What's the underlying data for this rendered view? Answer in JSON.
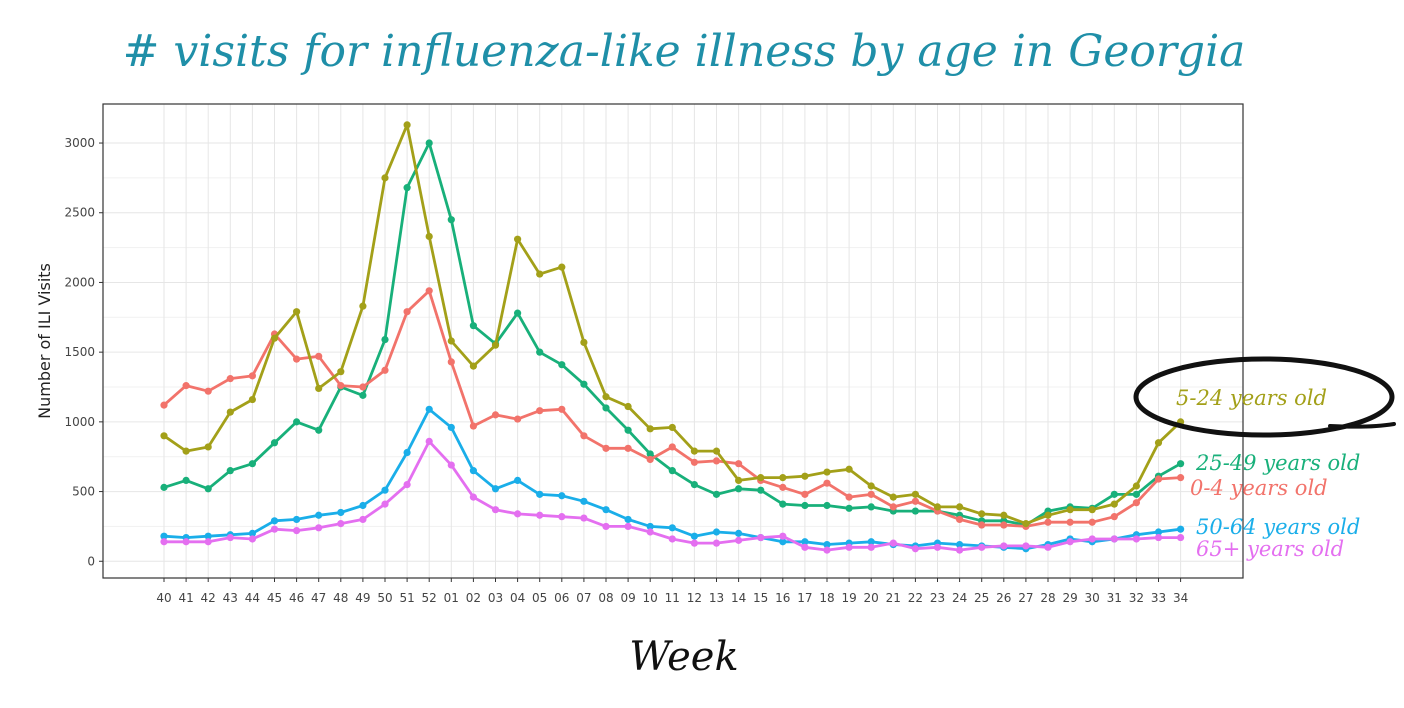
{
  "title": "# visits for influenza-like illness by age in Georgia",
  "chart_data": {
    "type": "line",
    "title": "# visits for influenza-like illness by age in Georgia",
    "xlabel": "Week",
    "ylabel": "Number of ILI Visits",
    "ylim": [
      -120,
      3280
    ],
    "yticks": [
      0,
      500,
      1000,
      1500,
      2000,
      2500,
      3000
    ],
    "grid": true,
    "legend_placement": "right",
    "categories": [
      "40",
      "41",
      "42",
      "43",
      "44",
      "45",
      "46",
      "47",
      "48",
      "49",
      "50",
      "51",
      "52",
      "01",
      "02",
      "03",
      "04",
      "05",
      "06",
      "07",
      "08",
      "09",
      "10",
      "11",
      "12",
      "13",
      "14",
      "15",
      "16",
      "17",
      "18",
      "19",
      "20",
      "21",
      "22",
      "23",
      "24",
      "25",
      "26",
      "27",
      "28",
      "29",
      "30",
      "31",
      "32",
      "33",
      "34"
    ],
    "series": [
      {
        "name": "5-24 years old",
        "color": "#a3a019",
        "highlighted": true,
        "values": [
          900,
          790,
          820,
          1070,
          1160,
          1600,
          1790,
          1240,
          1360,
          1830,
          2750,
          3130,
          2330,
          1580,
          1400,
          1550,
          2310,
          2060,
          2110,
          1570,
          1180,
          1110,
          950,
          960,
          790,
          790,
          580,
          600,
          600,
          610,
          640,
          660,
          540,
          460,
          480,
          390,
          390,
          340,
          330,
          270,
          330,
          370,
          370,
          410,
          540,
          850,
          1000
        ]
      },
      {
        "name": "25-49 years old",
        "color": "#18b07a",
        "values": [
          530,
          580,
          520,
          650,
          700,
          850,
          1000,
          940,
          1250,
          1190,
          1590,
          2680,
          3000,
          2450,
          1690,
          1560,
          1780,
          1500,
          1410,
          1270,
          1100,
          940,
          770,
          650,
          550,
          480,
          520,
          510,
          410,
          400,
          400,
          380,
          390,
          360,
          360,
          360,
          330,
          290,
          290,
          260,
          360,
          390,
          380,
          480,
          480,
          610,
          700
        ]
      },
      {
        "name": "0-4 years old",
        "color": "#f2736b",
        "values": [
          1120,
          1260,
          1220,
          1310,
          1330,
          1630,
          1450,
          1470,
          1260,
          1250,
          1370,
          1790,
          1940,
          1430,
          970,
          1050,
          1020,
          1080,
          1090,
          900,
          810,
          810,
          730,
          820,
          710,
          720,
          700,
          580,
          530,
          480,
          560,
          460,
          480,
          390,
          430,
          360,
          300,
          260,
          260,
          250,
          280,
          280,
          280,
          320,
          420,
          590,
          600
        ]
      },
      {
        "name": "50-64 years old",
        "color": "#1aaee9",
        "values": [
          180,
          170,
          180,
          190,
          200,
          290,
          300,
          330,
          350,
          400,
          510,
          780,
          1090,
          960,
          650,
          520,
          580,
          480,
          470,
          430,
          370,
          300,
          250,
          240,
          180,
          210,
          200,
          170,
          140,
          140,
          120,
          130,
          140,
          120,
          110,
          130,
          120,
          110,
          100,
          90,
          120,
          160,
          140,
          160,
          190,
          210,
          230
        ]
      },
      {
        "name": "65+ years old",
        "color": "#e46ff0",
        "values": [
          140,
          140,
          140,
          170,
          160,
          230,
          220,
          240,
          270,
          300,
          410,
          550,
          860,
          690,
          460,
          370,
          340,
          330,
          320,
          310,
          250,
          250,
          210,
          160,
          130,
          130,
          150,
          170,
          180,
          100,
          80,
          100,
          100,
          130,
          90,
          100,
          80,
          100,
          110,
          110,
          100,
          140,
          160,
          160,
          160,
          170,
          170
        ]
      }
    ]
  }
}
